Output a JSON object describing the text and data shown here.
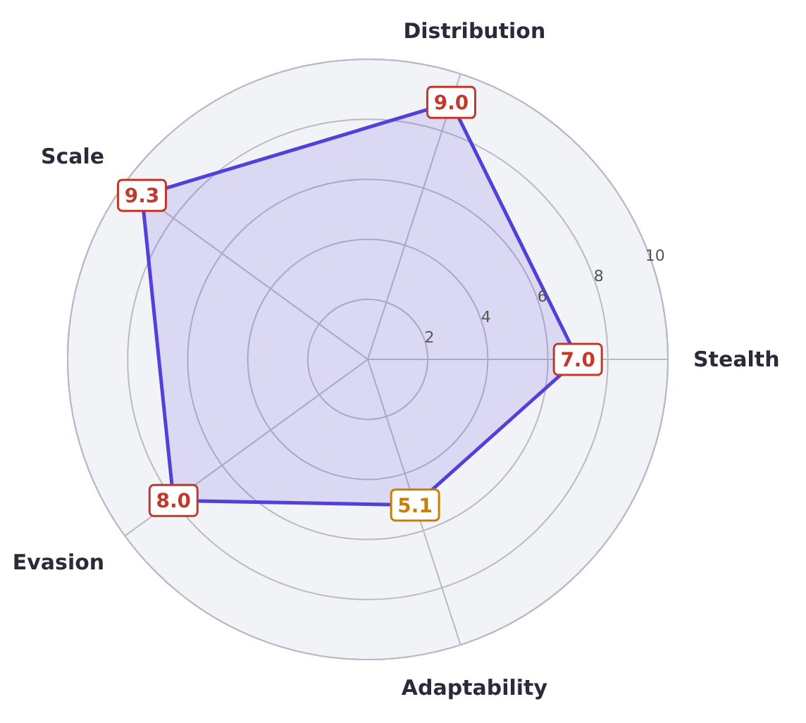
{
  "chart_data": {
    "type": "radar",
    "categories": [
      "Distribution",
      "Stealth",
      "Adaptability",
      "Evasion",
      "Scale"
    ],
    "series": [
      {
        "color": "#5340d8",
        "values": [
          9.0,
          7.0,
          5.1,
          8.0,
          9.3
        ],
        "colors": [
          "#c0392b",
          "#c0392b",
          "#c87f0a",
          "#c0392b",
          "#c0392b"
        ],
        "value_labels": [
          "9.0",
          "7.0",
          "5.1",
          "8.0",
          "9.3"
        ]
      }
    ],
    "ylim": [
      0,
      10
    ],
    "yticks": [
      2,
      4,
      6,
      8,
      10
    ],
    "grid": true
  }
}
